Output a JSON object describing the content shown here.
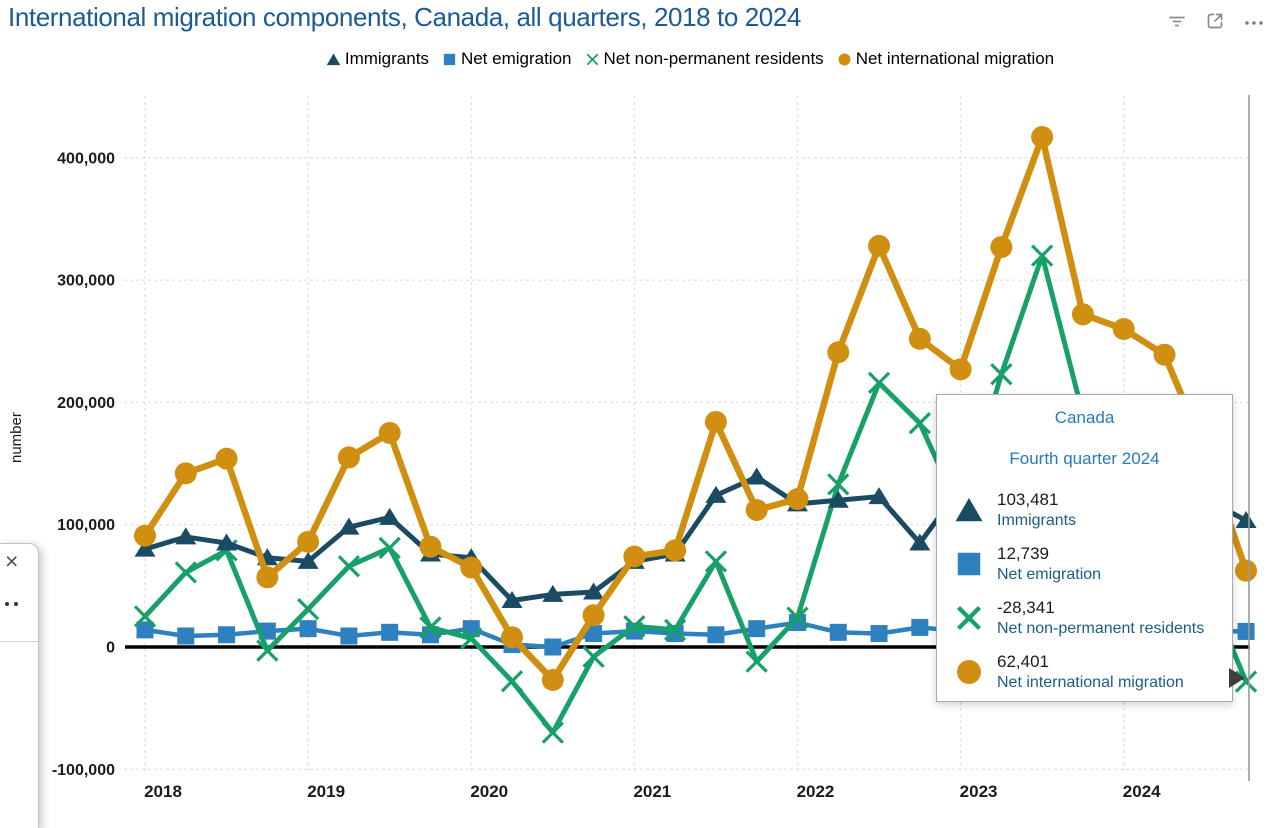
{
  "header": {
    "title": "International migration components, Canada, all quarters, 2018 to 2024",
    "title_color": "#1A5A96",
    "icons": [
      {
        "name": "filter"
      },
      {
        "name": "pop-out"
      },
      {
        "name": "more-options"
      }
    ]
  },
  "legend": {
    "items": [
      {
        "label": "Immigrants",
        "marker": "triangle",
        "color": "#1A4B63"
      },
      {
        "label": "Net emigration",
        "marker": "square",
        "color": "#2E80BF"
      },
      {
        "label": "Net non-permanent residents",
        "marker": "x",
        "color": "#17A168"
      },
      {
        "label": "Net international migration",
        "marker": "circle",
        "color": "#D18F12"
      }
    ]
  },
  "y_axis": {
    "title": "number",
    "ticks": [
      {
        "label": "400,000",
        "value": 400000
      },
      {
        "label": "300,000",
        "value": 300000
      },
      {
        "label": "200,000",
        "value": 200000
      },
      {
        "label": "100,000",
        "value": 100000
      },
      {
        "label": "0",
        "value": 0
      },
      {
        "label": "-100,000",
        "value": -100000
      }
    ]
  },
  "x_axis": {
    "labels": [
      "2018",
      "2019",
      "2020",
      "2021",
      "2022",
      "2023",
      "2024"
    ]
  },
  "chart_data": {
    "type": "line",
    "title": "International migration components, Canada, all quarters, 2018 to 2024",
    "xlabel": "",
    "ylabel": "number",
    "ylim": [
      -100000,
      450000
    ],
    "grid": "dotted",
    "legend_position": "top",
    "x": [
      "2018 Q1",
      "2018 Q2",
      "2018 Q3",
      "2018 Q4",
      "2019 Q1",
      "2019 Q2",
      "2019 Q3",
      "2019 Q4",
      "2020 Q1",
      "2020 Q2",
      "2020 Q3",
      "2020 Q4",
      "2021 Q1",
      "2021 Q2",
      "2021 Q3",
      "2021 Q4",
      "2022 Q1",
      "2022 Q2",
      "2022 Q3",
      "2022 Q4",
      "2023 Q1",
      "2023 Q2",
      "2023 Q3",
      "2023 Q4",
      "2024 Q1",
      "2024 Q2",
      "2024 Q3",
      "2024 Q4"
    ],
    "series": [
      {
        "name": "Immigrants",
        "marker": "triangle",
        "color": "#1A4B63",
        "line_width": 5,
        "values": [
          80000,
          90000,
          85000,
          73000,
          70000,
          98000,
          106000,
          76000,
          73000,
          38000,
          43000,
          45000,
          70000,
          76000,
          124000,
          139000,
          117000,
          120000,
          123000,
          85000,
          130000,
          117000,
          110000,
          95000,
          122000,
          113000,
          121000,
          103481
        ]
      },
      {
        "name": "Net emigration",
        "marker": "square",
        "color": "#2E80BF",
        "line_width": 4.5,
        "values": [
          14000,
          9000,
          10000,
          13000,
          15000,
          9000,
          12000,
          10000,
          15000,
          2000,
          0,
          11000,
          13000,
          11000,
          10000,
          15000,
          20000,
          12000,
          11000,
          16000,
          13000,
          13000,
          13000,
          13000,
          13000,
          13000,
          13000,
          12739
        ]
      },
      {
        "name": "Net non-permanent residents",
        "marker": "x",
        "color": "#17A168",
        "line_width": 5,
        "values": [
          25000,
          61000,
          79000,
          -3000,
          31000,
          66000,
          81000,
          16000,
          7000,
          -28000,
          -70000,
          -8000,
          17000,
          14000,
          70000,
          -12000,
          24000,
          133000,
          216000,
          183000,
          110000,
          223000,
          320000,
          190000,
          151000,
          139000,
          52000,
          -28341
        ]
      },
      {
        "name": "Net international migration",
        "marker": "circle",
        "color": "#D18F12",
        "line_width": 6.5,
        "values": [
          91000,
          142000,
          154000,
          57000,
          86000,
          155000,
          175000,
          82000,
          65000,
          8000,
          -27000,
          26000,
          74000,
          79000,
          184000,
          112000,
          121000,
          241000,
          328000,
          252000,
          227000,
          327000,
          417000,
          272000,
          260000,
          239000,
          160000,
          62401
        ]
      }
    ]
  },
  "tooltip": {
    "region": "Canada",
    "period": "Fourth quarter 2024",
    "rows": [
      {
        "value": "103,481",
        "label": "Immigrants",
        "marker": "triangle",
        "color": "#1A4B63"
      },
      {
        "value": "12,739",
        "label": "Net emigration",
        "marker": "square",
        "color": "#2E80BF"
      },
      {
        "value": "-28,341",
        "label": "Net non-permanent residents",
        "marker": "x",
        "color": "#17A168"
      },
      {
        "value": "62,401",
        "label": "Net international migration",
        "marker": "circle",
        "color": "#D18F12"
      }
    ]
  },
  "side_panel": {
    "close_glyph": "×"
  },
  "colors": {
    "title": "#1A5A96",
    "tooltip_header": "#2A7AB8",
    "tooltip_label": "#1C5D82",
    "gridline": "#dcdcdc",
    "zero_line": "#000000",
    "guide_line": "#999999",
    "icon_gray": "#8c8c8c"
  }
}
